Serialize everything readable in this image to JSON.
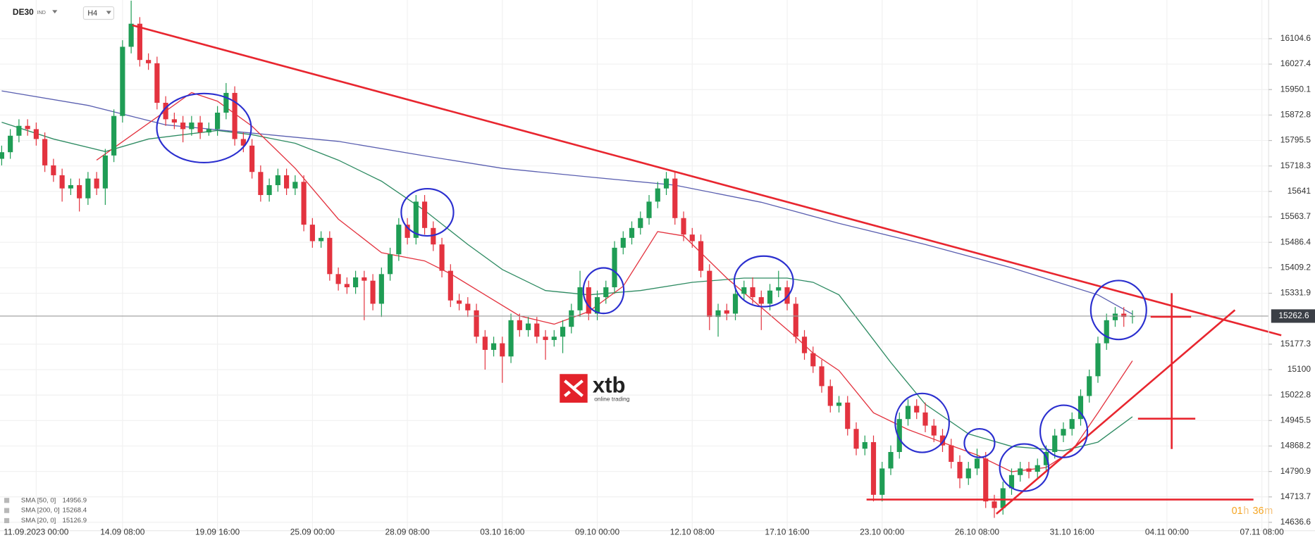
{
  "toolbar": {
    "symbol": "DE30",
    "market": "IND",
    "interval": "H4"
  },
  "timer": [
    "01",
    "h",
    "36",
    "m"
  ],
  "logo": {
    "brand": "xtb",
    "tagline": "online trading"
  },
  "chart_data": {
    "type": "candlestick",
    "ylim": [
      14611,
      16222
    ],
    "yticks": [
      16104.6,
      16027.4,
      15950.1,
      15872.8,
      15795.5,
      15718.3,
      15641.0,
      15563.7,
      15486.4,
      15409.2,
      15331.9,
      15177.3,
      15100.0,
      15022.8,
      14945.5,
      14868.2,
      14790.9,
      14713.7,
      14636.6
    ],
    "grid": true,
    "up_color": "#1f9d55",
    "down_color": "#e3333f",
    "categories": [
      null,
      null,
      null,
      null,
      "11.09.2023 00:00",
      null,
      null,
      null,
      null,
      null,
      null,
      null,
      null,
      null,
      "14.09 08:00",
      null,
      null,
      null,
      null,
      null,
      null,
      null,
      null,
      null,
      null,
      "19.09 16:00",
      null,
      null,
      null,
      null,
      null,
      null,
      null,
      null,
      null,
      null,
      "25.09 00:00",
      null,
      null,
      null,
      null,
      null,
      null,
      null,
      null,
      null,
      null,
      "28.09 08:00",
      null,
      null,
      null,
      null,
      null,
      null,
      null,
      null,
      null,
      null,
      "03.10 16:00",
      null,
      null,
      null,
      null,
      null,
      null,
      null,
      null,
      null,
      null,
      "09.10 00:00",
      null,
      null,
      null,
      null,
      null,
      null,
      null,
      null,
      null,
      null,
      "12.10 08:00",
      null,
      null,
      null,
      null,
      null,
      null,
      null,
      null,
      null,
      null,
      "17.10 16:00",
      null,
      null,
      null,
      null,
      null,
      null,
      null,
      null,
      null,
      null,
      "23.10 00:00",
      null,
      null,
      null,
      null,
      null,
      null,
      null,
      null,
      null,
      null,
      "26.10 08:00",
      null,
      null,
      null,
      null,
      null,
      null,
      null,
      null,
      null,
      null,
      "31.10 16:00",
      null,
      null,
      null,
      null,
      null,
      null,
      null,
      null,
      null,
      null,
      "04.11 00:00",
      null,
      null,
      null,
      null,
      null,
      null,
      null,
      null,
      null,
      null,
      "07.11 08:00"
    ],
    "candles": [
      [
        15740,
        15780,
        15720,
        15760
      ],
      [
        15760,
        15830,
        15740,
        15810
      ],
      [
        15810,
        15860,
        15790,
        15840
      ],
      [
        15840,
        15860,
        15810,
        15830
      ],
      [
        15830,
        15850,
        15780,
        15800
      ],
      [
        15800,
        15820,
        15700,
        15720
      ],
      [
        15720,
        15740,
        15670,
        15690
      ],
      [
        15690,
        15710,
        15610,
        15650
      ],
      [
        15650,
        15680,
        15630,
        15660
      ],
      [
        15660,
        15680,
        15580,
        15620
      ],
      [
        15620,
        15700,
        15600,
        15680
      ],
      [
        15680,
        15700,
        15630,
        15650
      ],
      [
        15650,
        15770,
        15600,
        15750
      ],
      [
        15750,
        15890,
        15730,
        15870
      ],
      [
        15870,
        16100,
        15850,
        16080
      ],
      [
        16080,
        16220,
        16060,
        16150
      ],
      [
        16150,
        16170,
        16020,
        16040
      ],
      [
        16040,
        16060,
        16010,
        16030
      ],
      [
        16030,
        16050,
        15890,
        15910
      ],
      [
        15910,
        15930,
        15840,
        15860
      ],
      [
        15860,
        15880,
        15830,
        15850
      ],
      [
        15850,
        15870,
        15790,
        15830
      ],
      [
        15830,
        15870,
        15810,
        15850
      ],
      [
        15850,
        15870,
        15800,
        15820
      ],
      [
        15820,
        15850,
        15810,
        15830
      ],
      [
        15830,
        15900,
        15810,
        15880
      ],
      [
        15880,
        15970,
        15860,
        15940
      ],
      [
        15940,
        15960,
        15780,
        15800
      ],
      [
        15800,
        15820,
        15760,
        15780
      ],
      [
        15780,
        15800,
        15680,
        15700
      ],
      [
        15700,
        15720,
        15610,
        15630
      ],
      [
        15630,
        15680,
        15610,
        15660
      ],
      [
        15660,
        15710,
        15640,
        15690
      ],
      [
        15690,
        15710,
        15630,
        15650
      ],
      [
        15650,
        15690,
        15630,
        15670
      ],
      [
        15670,
        15690,
        15520,
        15540
      ],
      [
        15540,
        15560,
        15470,
        15490
      ],
      [
        15490,
        15520,
        15470,
        15500
      ],
      [
        15500,
        15520,
        15370,
        15390
      ],
      [
        15390,
        15410,
        15340,
        15360
      ],
      [
        15360,
        15380,
        15330,
        15350
      ],
      [
        15350,
        15400,
        15330,
        15380
      ],
      [
        15380,
        15400,
        15250,
        15370
      ],
      [
        15370,
        15390,
        15280,
        15300
      ],
      [
        15300,
        15410,
        15260,
        15390
      ],
      [
        15390,
        15470,
        15370,
        15450
      ],
      [
        15450,
        15560,
        15430,
        15540
      ],
      [
        15540,
        15560,
        15480,
        15500
      ],
      [
        15500,
        15630,
        15480,
        15610
      ],
      [
        15610,
        15630,
        15510,
        15530
      ],
      [
        15530,
        15550,
        15460,
        15480
      ],
      [
        15480,
        15500,
        15380,
        15400
      ],
      [
        15400,
        15420,
        15290,
        15310
      ],
      [
        15310,
        15330,
        15280,
        15300
      ],
      [
        15300,
        15320,
        15260,
        15280
      ],
      [
        15280,
        15300,
        15180,
        15200
      ],
      [
        15200,
        15220,
        15100,
        15160
      ],
      [
        15160,
        15200,
        15140,
        15180
      ],
      [
        15180,
        15200,
        15060,
        15140
      ],
      [
        15140,
        15270,
        15120,
        15250
      ],
      [
        15250,
        15270,
        15200,
        15220
      ],
      [
        15220,
        15260,
        15200,
        15240
      ],
      [
        15240,
        15260,
        15180,
        15200
      ],
      [
        15200,
        15220,
        15130,
        15190
      ],
      [
        15190,
        15220,
        15170,
        15200
      ],
      [
        15200,
        15250,
        15150,
        15230
      ],
      [
        15230,
        15300,
        15210,
        15280
      ],
      [
        15280,
        15400,
        15260,
        15350
      ],
      [
        15350,
        15370,
        15250,
        15270
      ],
      [
        15270,
        15340,
        15250,
        15320
      ],
      [
        15320,
        15370,
        15300,
        15350
      ],
      [
        15350,
        15490,
        15330,
        15470
      ],
      [
        15470,
        15520,
        15450,
        15500
      ],
      [
        15500,
        15550,
        15480,
        15530
      ],
      [
        15530,
        15580,
        15510,
        15560
      ],
      [
        15560,
        15630,
        15540,
        15610
      ],
      [
        15610,
        15670,
        15590,
        15650
      ],
      [
        15650,
        15700,
        15630,
        15680
      ],
      [
        15680,
        15700,
        15540,
        15560
      ],
      [
        15560,
        15580,
        15490,
        15510
      ],
      [
        15510,
        15530,
        15470,
        15490
      ],
      [
        15490,
        15510,
        15380,
        15400
      ],
      [
        15400,
        15420,
        15220,
        15260
      ],
      [
        15260,
        15300,
        15200,
        15280
      ],
      [
        15280,
        15300,
        15250,
        15270
      ],
      [
        15270,
        15350,
        15250,
        15330
      ],
      [
        15330,
        15370,
        15310,
        15350
      ],
      [
        15350,
        15380,
        15300,
        15320
      ],
      [
        15320,
        15340,
        15220,
        15300
      ],
      [
        15300,
        15360,
        15280,
        15340
      ],
      [
        15340,
        15400,
        15320,
        15350
      ],
      [
        15350,
        15370,
        15280,
        15300
      ],
      [
        15300,
        15320,
        15180,
        15200
      ],
      [
        15200,
        15220,
        15130,
        15150
      ],
      [
        15150,
        15170,
        15090,
        15110
      ],
      [
        15110,
        15130,
        15030,
        15050
      ],
      [
        15050,
        15070,
        14970,
        14990
      ],
      [
        14990,
        15020,
        14970,
        15000
      ],
      [
        15000,
        15020,
        14900,
        14920
      ],
      [
        14920,
        14940,
        14840,
        14860
      ],
      [
        14860,
        14900,
        14840,
        14880
      ],
      [
        14880,
        14900,
        14700,
        14720
      ],
      [
        14720,
        14820,
        14700,
        14800
      ],
      [
        14800,
        14870,
        14780,
        14850
      ],
      [
        14850,
        14970,
        14830,
        14950
      ],
      [
        14950,
        15010,
        14930,
        14990
      ],
      [
        14990,
        15010,
        14950,
        14970
      ],
      [
        14970,
        15000,
        14910,
        14930
      ],
      [
        14930,
        14950,
        14880,
        14900
      ],
      [
        14900,
        14920,
        14850,
        14870
      ],
      [
        14870,
        14890,
        14800,
        14820
      ],
      [
        14820,
        14840,
        14740,
        14770
      ],
      [
        14770,
        14820,
        14750,
        14800
      ],
      [
        14800,
        14860,
        14780,
        14830
      ],
      [
        14830,
        14850,
        14680,
        14700
      ],
      [
        14700,
        14720,
        14650,
        14680
      ],
      [
        14680,
        14760,
        14660,
        14740
      ],
      [
        14740,
        14800,
        14720,
        14780
      ],
      [
        14780,
        14820,
        14760,
        14800
      ],
      [
        14800,
        14820,
        14770,
        14790
      ],
      [
        14790,
        14830,
        14770,
        14810
      ],
      [
        14810,
        14870,
        14790,
        14850
      ],
      [
        14850,
        14920,
        14830,
        14900
      ],
      [
        14900,
        14940,
        14880,
        14920
      ],
      [
        14920,
        14970,
        14900,
        14950
      ],
      [
        14950,
        15040,
        14930,
        15020
      ],
      [
        15020,
        15100,
        15000,
        15080
      ],
      [
        15080,
        15200,
        15060,
        15180
      ],
      [
        15180,
        15270,
        15160,
        15250
      ],
      [
        15250,
        15290,
        15230,
        15270
      ],
      [
        15270,
        15290,
        15230,
        15260
      ],
      [
        15260,
        15280,
        15240,
        15262.6
      ],
      null,
      null,
      null,
      null,
      null,
      null,
      null,
      null,
      null,
      null,
      null,
      null,
      null,
      null,
      null
    ],
    "series": [
      {
        "name": "SMA [50, 0]",
        "color": "#2e8b62",
        "x": [
          0,
          6,
          12,
          17,
          25,
          29,
          34,
          39,
          44,
          49,
          54,
          58,
          63,
          68,
          74,
          80,
          86,
          91,
          94,
          97,
          100,
          103,
          107,
          112,
          117,
          123,
          127,
          131
        ],
        "values": [
          15851,
          15800,
          15762,
          15800,
          15826,
          15813,
          15787,
          15736,
          15672,
          15583,
          15480,
          15404,
          15340,
          15327,
          15340,
          15365,
          15378,
          15378,
          15365,
          15327,
          15225,
          15122,
          14995,
          14905,
          14867,
          14854,
          14880,
          14956.9
        ]
      },
      {
        "name": "SMA [200, 0]",
        "color": "#5a5fb0",
        "x": [
          0,
          10,
          19,
          29,
          39,
          49,
          58,
          68,
          78,
          88,
          97,
          107,
          117,
          127,
          131
        ],
        "values": [
          15946,
          15902,
          15843,
          15818,
          15793,
          15749,
          15711,
          15685,
          15660,
          15608,
          15544,
          15480,
          15409,
          15327,
          15268.4
        ]
      },
      {
        "name": "SMA [20, 0]",
        "color": "#e3333f",
        "x": [
          11,
          22,
          25,
          29,
          34,
          39,
          44,
          49,
          52,
          56,
          60,
          64,
          68,
          72,
          76,
          79,
          81,
          84,
          88,
          92,
          94,
          97,
          101,
          105,
          109,
          113,
          117,
          121,
          124,
          127,
          131
        ],
        "values": [
          15736,
          15941,
          15915,
          15839,
          15711,
          15557,
          15455,
          15430,
          15391,
          15327,
          15263,
          15238,
          15276,
          15353,
          15519,
          15506,
          15455,
          15378,
          15289,
          15199,
          15150,
          15097,
          14969,
          14918,
          14879,
          14841,
          14790,
          14803,
          14854,
          14969,
          15126.9
        ]
      }
    ]
  }
}
